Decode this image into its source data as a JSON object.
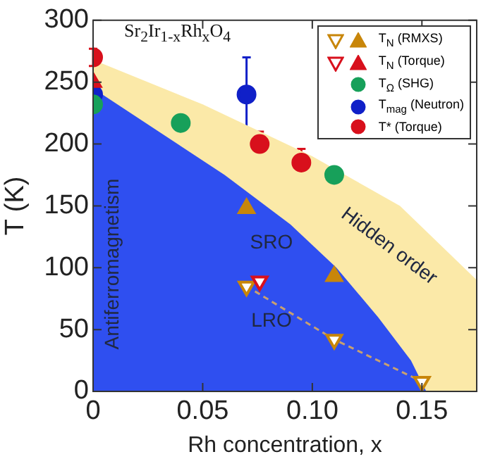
{
  "chart_data": {
    "type": "scatter",
    "title": "Sr$_{2}$Ir$_{1-x}$Rh$_{x}$O$_{4}$",
    "xlabel": "Rh concentration, x",
    "ylabel": "T (K)",
    "xlim": [
      0,
      0.175
    ],
    "xticks": [
      0,
      {
        "value": 0.05,
        "label": "0.05"
      },
      {
        "value": 0.1,
        "label": "0.10"
      },
      {
        "value": 0.15,
        "label": "0.15"
      }
    ],
    "ylim": [
      0,
      300
    ],
    "yticks": [
      0,
      50,
      100,
      150,
      200,
      250,
      300
    ],
    "grid": false,
    "legend": "top right",
    "annotations": [
      "SRO",
      "LRO"
    ],
    "series": [
      {
        "type": "area",
        "name": "Hidden order",
        "color": "#fbe9a8",
        "x": [
          0,
          0.05,
          0.1,
          0.14,
          0.175
        ],
        "values": [
          268,
          232,
          190,
          150,
          90
        ]
      },
      {
        "type": "area",
        "name": "Antiferromagnetism",
        "color": "#2f4ff0",
        "x": [
          0,
          0.03,
          0.06,
          0.09,
          0.111,
          0.13,
          0.145,
          0.152
        ],
        "values": [
          245,
          210,
          175,
          135,
          100,
          60,
          25,
          0
        ]
      },
      {
        "type": "scatter",
        "name": "T$_{N}$ (RMXS)",
        "color": "#c8860a",
        "marker": "triangle",
        "x": [
          0.07,
          0.11
        ],
        "values": [
          148,
          93
        ]
      },
      {
        "type": "line",
        "color": "#c8860a",
        "marker": "triangle-down",
        "line_style": "dashed",
        "x": [
          0.07,
          0.11,
          0.15
        ],
        "values": [
          85,
          42,
          8
        ]
      },
      {
        "type": "scatter",
        "name": "T$_{N}$ (Torque)",
        "color": "#d8101c",
        "marker": "triangle",
        "x": [
          0
        ],
        "values": [
          250
        ]
      },
      {
        "type": "scatter",
        "color": "#d8101c",
        "marker": "triangle-down",
        "x": [
          0.076
        ],
        "values": [
          89
        ]
      },
      {
        "type": "scatter",
        "name": "T$_{Ω}$ (SHG)",
        "color": "#17a05a",
        "marker": "circle",
        "x": [
          0,
          0.04,
          0.11
        ],
        "values": [
          232,
          217,
          175
        ]
      },
      {
        "type": "scatter",
        "name": "T$_{mag}$ (Neutron)",
        "color": "#1020c8",
        "marker": "circle",
        "x": [
          0,
          0.07
        ],
        "values": [
          240,
          240
        ],
        "errors": [
          null,
          [
            210,
            270
          ]
        ]
      },
      {
        "type": "scatter",
        "name": "T* (Torque)",
        "color": "#d8101c",
        "marker": "circle",
        "x": [
          0,
          0.076,
          0.095
        ],
        "values": [
          270,
          200,
          185
        ],
        "errors": [
          7,
          [
            190,
            210
          ],
          [
            174,
            196
          ]
        ]
      }
    ]
  }
}
